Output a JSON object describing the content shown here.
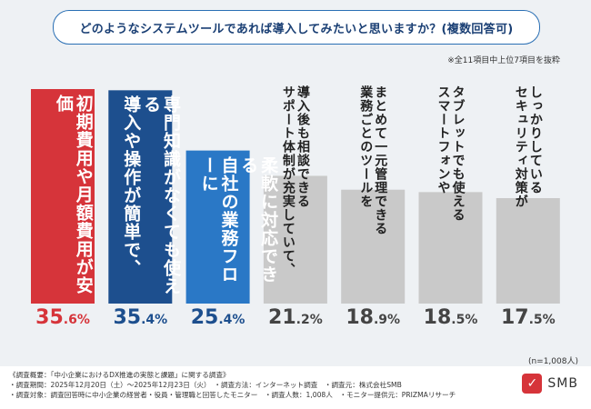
{
  "header": {
    "title": "どのようなシステムツールであれば導入してみたいと思いますか？(複数回答可)",
    "note": "※全11項目中上位7項目を抜粋"
  },
  "chart_data": {
    "type": "bar",
    "title": "どのようなシステムツールであれば導入してみたいと思いますか？(複数回答可)",
    "categories": [
      "初期費用や月額費用が安価",
      "専門知識がなくても使える導入や操作が簡単で、",
      "柔軟に対応できる自社の業務フローに",
      "導入後も相談できるサポート体制が充実していて、",
      "まとめて一元管理できる業務ごとのツールを",
      "タブレットでも使えるスマートフォンや",
      "しっかりしているセキュリティ対策が"
    ],
    "label_columns": [
      [
        "初期費用や月額費用が安価"
      ],
      [
        "専門知識がなくても使える",
        "導入や操作が簡単で、"
      ],
      [
        "柔軟に対応できる",
        "自社の業務フローに"
      ],
      [
        "導入後も相談できる",
        "サポート体制が充実していて、"
      ],
      [
        "まとめて一元管理できる",
        "業務ごとのツールを"
      ],
      [
        "タブレットでも使える",
        "スマートフォンや"
      ],
      [
        "しっかりしている",
        "セキュリティ対策が"
      ]
    ],
    "values": [
      35.6,
      35.4,
      25.4,
      21.2,
      18.9,
      18.5,
      17.5
    ],
    "value_labels": [
      {
        "int": "35",
        "dec": ".6%"
      },
      {
        "int": "35",
        "dec": ".4%"
      },
      {
        "int": "25",
        "dec": ".4%"
      },
      {
        "int": "21",
        "dec": ".2%"
      },
      {
        "int": "18",
        "dec": ".9%"
      },
      {
        "int": "18",
        "dec": ".5%"
      },
      {
        "int": "17",
        "dec": ".5%"
      }
    ],
    "colors": [
      "#d6343a",
      "#1d4f8e",
      "#2a78c6",
      "#c9c9c9",
      "#c9c9c9",
      "#c9c9c9",
      "#c9c9c9"
    ],
    "ylim": [
      0,
      35.6
    ],
    "sample_size": "(n=1,008人)"
  },
  "footer": {
    "lines": [
      "《調査概要：「中小企業におけるDX推進の実態と課題」に関する調査》",
      "・調査期間：2025年12月20日（土）～2025年12月23日（火）　・調査方法：インターネット調査　・調査元：株式会社SMB",
      "・調査対象：調査回答時に中小企業の経営者・役員・管理職と回答したモニター　・調査人数：1,008人　・モニター提供元：PRIZMAリサーチ"
    ],
    "logo_text": "SMB"
  }
}
